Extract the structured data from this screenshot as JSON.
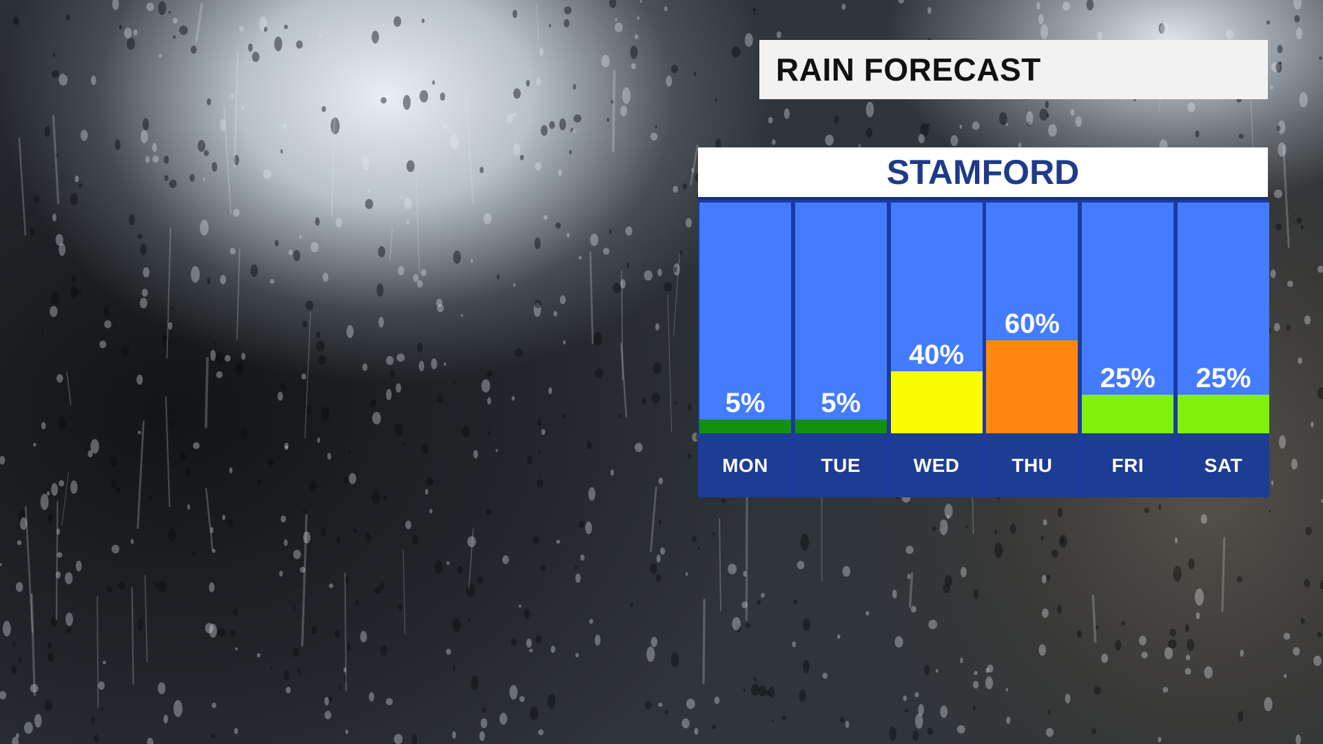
{
  "header": {
    "title": "RAIN FORECAST"
  },
  "location": {
    "name": "STAMFORD"
  },
  "colors": {
    "column_bg": "#447cff",
    "label_box": "#1d3c94",
    "location_text": "#1e3a8a",
    "bar_5": "#13900f",
    "bar_25": "#7ef20a",
    "bar_40": "#fafc00",
    "bar_60": "#ff870d"
  },
  "chart_data": {
    "type": "bar",
    "title": "STAMFORD",
    "categories": [
      "MON",
      "TUE",
      "WED",
      "THU",
      "FRI",
      "SAT"
    ],
    "values": [
      5,
      5,
      40,
      60,
      25,
      25
    ],
    "labels": [
      "5%",
      "5%",
      "40%",
      "60%",
      "25%",
      "25%"
    ],
    "bar_colors": [
      "#13900f",
      "#13900f",
      "#fafc00",
      "#ff870d",
      "#7ef20a",
      "#7ef20a"
    ],
    "ylabel": "",
    "xlabel": "",
    "ylim": [
      0,
      100
    ],
    "grid": false
  }
}
